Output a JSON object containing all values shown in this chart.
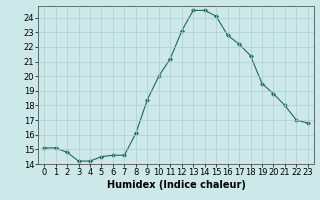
{
  "x": [
    0,
    1,
    2,
    3,
    4,
    5,
    6,
    7,
    8,
    9,
    10,
    11,
    12,
    13,
    14,
    15,
    16,
    17,
    18,
    19,
    20,
    21,
    22,
    23
  ],
  "y": [
    15.1,
    15.1,
    14.8,
    14.2,
    14.2,
    14.5,
    14.6,
    14.6,
    16.1,
    18.4,
    20.0,
    21.2,
    23.1,
    24.5,
    24.5,
    24.1,
    22.8,
    22.2,
    21.4,
    19.5,
    18.8,
    18.0,
    17.0,
    16.8
  ],
  "line_color": "#1a6b5a",
  "marker": "D",
  "marker_size": 2,
  "bg_color": "#cce8e8",
  "grid_color": "#aacfcf",
  "xlabel": "Humidex (Indice chaleur)",
  "xlim": [
    -0.5,
    23.5
  ],
  "ylim": [
    14.0,
    24.8
  ],
  "yticks": [
    14,
    15,
    16,
    17,
    18,
    19,
    20,
    21,
    22,
    23,
    24
  ],
  "xticks": [
    0,
    1,
    2,
    3,
    4,
    5,
    6,
    7,
    8,
    9,
    10,
    11,
    12,
    13,
    14,
    15,
    16,
    17,
    18,
    19,
    20,
    21,
    22,
    23
  ],
  "xlabel_fontsize": 7,
  "tick_fontsize": 6,
  "linewidth": 0.8
}
